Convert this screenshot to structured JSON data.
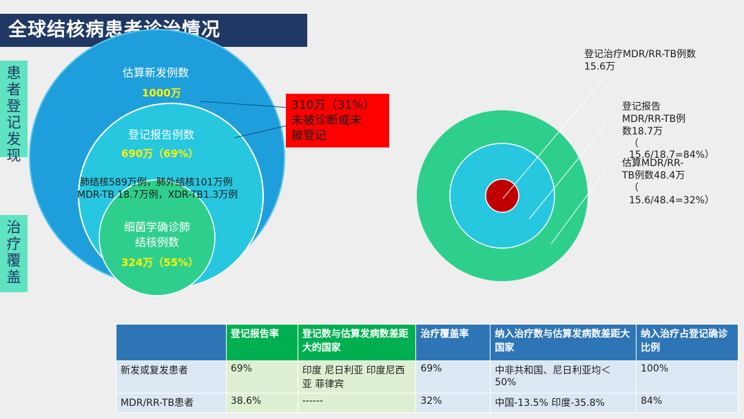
{
  "title": "全球结核病患者诊治情况",
  "side_labels": {
    "top": [
      "患",
      "者",
      "登",
      "记",
      "发",
      "现"
    ],
    "bottom": [
      "治",
      "疗",
      "覆",
      "盖"
    ]
  },
  "left_diagram": {
    "outer_label": "估算新发例数",
    "outer_value": "1000万",
    "middle_label": "登记报告例数",
    "middle_value": "690万（69%）",
    "middle_detail_line1": "肺结核589万例，肺外结核101万例",
    "middle_detail_line2": "MDR-TB 18.7万例，XDR-TB1.3万例",
    "inner_label_line1": "细菌学确诊肺",
    "inner_label_line2": "结核例数",
    "inner_value": "324万（55%）",
    "red_box_line1": "310万（31%）",
    "red_box_line2": "未被诊断或未",
    "red_box_line3": "被登记"
  },
  "right_diagram": {
    "ann1_line1": "登记治疗MDR/RR-TB例数",
    "ann1_line2": "15.6万",
    "ann2_line1": "登记报告",
    "ann2_line2": "MDR/RR-TB例",
    "ann2_line3": "数18.7万",
    "ann2_line4": "（",
    "ann2_line5": "15.6/18.7=84%）",
    "ann3_line1": "估算MDR/RR-",
    "ann3_line2": "TB例数48.4万",
    "ann3_line3": "（",
    "ann3_line4": "15.6/48.4=32%）"
  },
  "colors": {
    "outer": "#1e9fdc",
    "middle": "#27c7e0",
    "inner": "#2ecf8c",
    "ring_outer": "#2ecf8c",
    "ring_middle": "#27c7e0",
    "core": "#c00000"
  },
  "table": {
    "headers": [
      "",
      "登记报告率",
      "登记数与估算发病数差距大的国家",
      "治疗覆盖率",
      "纳入治疗数与估算发病数差距大国家",
      "纳入治疗占登记确诊比例"
    ],
    "rows": [
      [
        "新发或复发患者",
        "69%",
        "印度  尼日利亚 印度尼西亚 菲律宾",
        "69%",
        "中非共和国、尼日利亚均＜50%",
        "100%"
      ],
      [
        "MDR/RR-TB患者",
        "38.6%",
        "------",
        "32%",
        "中国-13.5% 印度-35.8%",
        "84%"
      ]
    ]
  }
}
